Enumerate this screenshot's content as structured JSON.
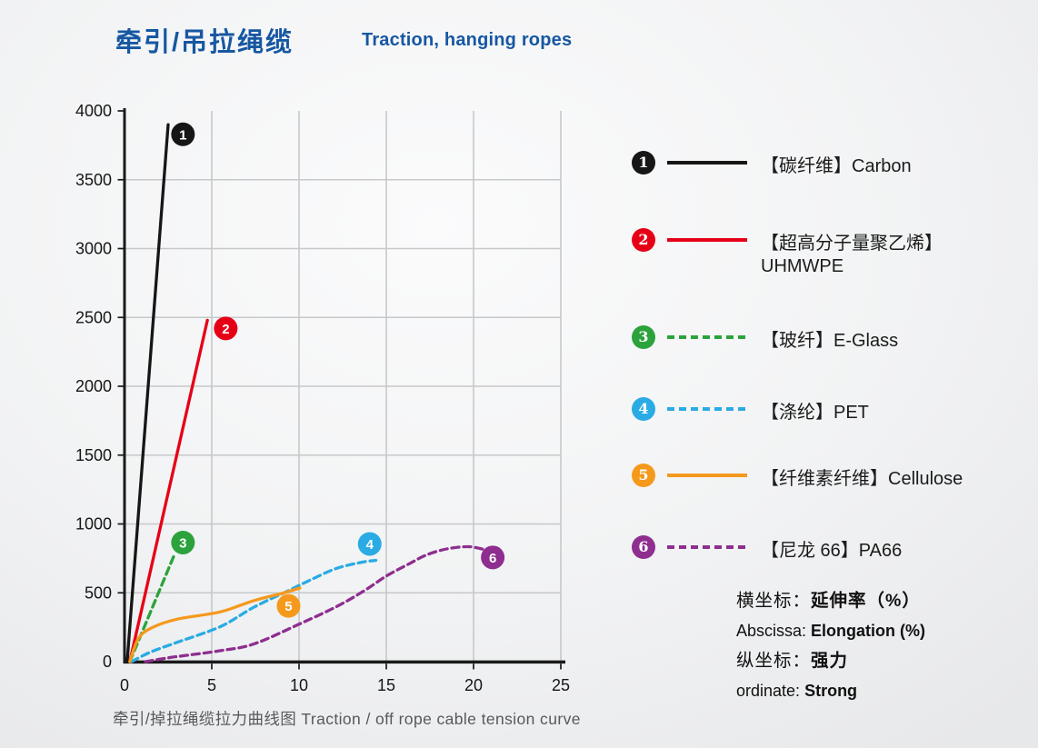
{
  "header": {
    "title_zh": "牵引/吊拉绳缆",
    "title_en": "Traction, hanging ropes",
    "accent_color": "#1657a2"
  },
  "chart_data": {
    "type": "line",
    "title": "",
    "xlabel": "延伸率 Elongation (%)",
    "ylabel": "强力 Strong",
    "xlim": [
      0,
      25
    ],
    "ylim": [
      0,
      4000
    ],
    "x_ticks": [
      0,
      5,
      10,
      15,
      20,
      25
    ],
    "y_ticks": [
      0,
      500,
      1000,
      1500,
      2000,
      2500,
      3000,
      3500,
      4000
    ],
    "grid": "on",
    "grid_color": "#c7c8ca",
    "axis_color": "#1a1a1a",
    "tick_label_color": "#161616",
    "legend_position": "right",
    "series": [
      {
        "num": "1",
        "key": "carbon",
        "name": "【碳纤维】Carbon",
        "color": "#161616",
        "dash": false,
        "points": [
          [
            0.15,
            0
          ],
          [
            2.5,
            3900
          ]
        ],
        "marker": [
          3.35,
          3830
        ]
      },
      {
        "num": "2",
        "key": "uhmwpe",
        "name": "【超高分子量聚乙烯】UHMWPE",
        "color": "#e60016",
        "dash": false,
        "points": [
          [
            0.3,
            0
          ],
          [
            4.75,
            2480
          ]
        ],
        "marker": [
          5.8,
          2420
        ]
      },
      {
        "num": "3",
        "key": "eglass",
        "name": "【玻纤】E-Glass",
        "color": "#2ba23c",
        "dash": true,
        "points": [
          [
            0.3,
            0
          ],
          [
            2.9,
            790
          ]
        ],
        "marker": [
          3.35,
          865
        ]
      },
      {
        "num": "4",
        "key": "pet",
        "name": "【涤纶】PET",
        "color": "#2aabe4",
        "dash": true,
        "points": [
          [
            0.4,
            0
          ],
          [
            1.5,
            70
          ],
          [
            3,
            140
          ],
          [
            5.5,
            255
          ],
          [
            7.4,
            395
          ],
          [
            9.3,
            510
          ],
          [
            10.6,
            590
          ],
          [
            12.1,
            675
          ],
          [
            13.6,
            722
          ],
          [
            14.4,
            735
          ]
        ],
        "marker": [
          14.05,
          855
        ]
      },
      {
        "num": "5",
        "key": "cellulose",
        "name": "【纤维素纤维】Cellulose",
        "color": "#f5991d",
        "dash": false,
        "points": [
          [
            0.3,
            0
          ],
          [
            0.8,
            170
          ],
          [
            1.6,
            248
          ],
          [
            3,
            308
          ],
          [
            5.5,
            362
          ],
          [
            7.4,
            443
          ],
          [
            9,
            495
          ],
          [
            10.05,
            535
          ]
        ],
        "marker": [
          9.4,
          405
        ]
      },
      {
        "num": "6",
        "key": "pa66",
        "name": "【尼龙 66】PA66",
        "color": "#8e2e8f",
        "dash": true,
        "points": [
          [
            1.2,
            0
          ],
          [
            2.5,
            28
          ],
          [
            3.7,
            48
          ],
          [
            5.5,
            80
          ],
          [
            7.4,
            128
          ],
          [
            10,
            272
          ],
          [
            12.1,
            397
          ],
          [
            13.7,
            512
          ],
          [
            15,
            622
          ],
          [
            16.3,
            710
          ],
          [
            17.3,
            775
          ],
          [
            18.5,
            820
          ],
          [
            19.7,
            835
          ],
          [
            20.6,
            815
          ]
        ],
        "marker": [
          21.1,
          757
        ]
      }
    ]
  },
  "legend": {
    "items": [
      {
        "num": "1",
        "key": "carbon",
        "label": "【碳纤维】Carbon",
        "color": "#161616",
        "dash": false
      },
      {
        "num": "2",
        "key": "uhmwpe",
        "label": "【超高分子量聚乙烯】",
        "label2": "UHMWPE",
        "color": "#e60016",
        "dash": false
      },
      {
        "num": "3",
        "key": "eglass",
        "label": "【玻纤】E-Glass",
        "color": "#2ba23c",
        "dash": true
      },
      {
        "num": "4",
        "key": "pet",
        "label": "【涤纶】PET",
        "color": "#2aabe4",
        "dash": true
      },
      {
        "num": "5",
        "key": "cellulose",
        "label": "【纤维素纤维】Cellulose",
        "color": "#f5991d",
        "dash": false
      },
      {
        "num": "6",
        "key": "pa66",
        "label": "【尼龙 66】PA66",
        "color": "#8e2e8f",
        "dash": true
      }
    ]
  },
  "notes": {
    "lines": [
      {
        "prefix": "横坐标：",
        "bold": "延伸率（%）"
      },
      {
        "prefix": "Abscissa: ",
        "bold": "Elongation (%)"
      },
      {
        "prefix": "纵坐标：",
        "bold": "强力"
      },
      {
        "prefix": "ordinate: ",
        "bold": "Strong"
      }
    ]
  },
  "caption": {
    "text": "牵引/掉拉绳缆拉力曲线图  Traction / off rope cable tension curve"
  }
}
